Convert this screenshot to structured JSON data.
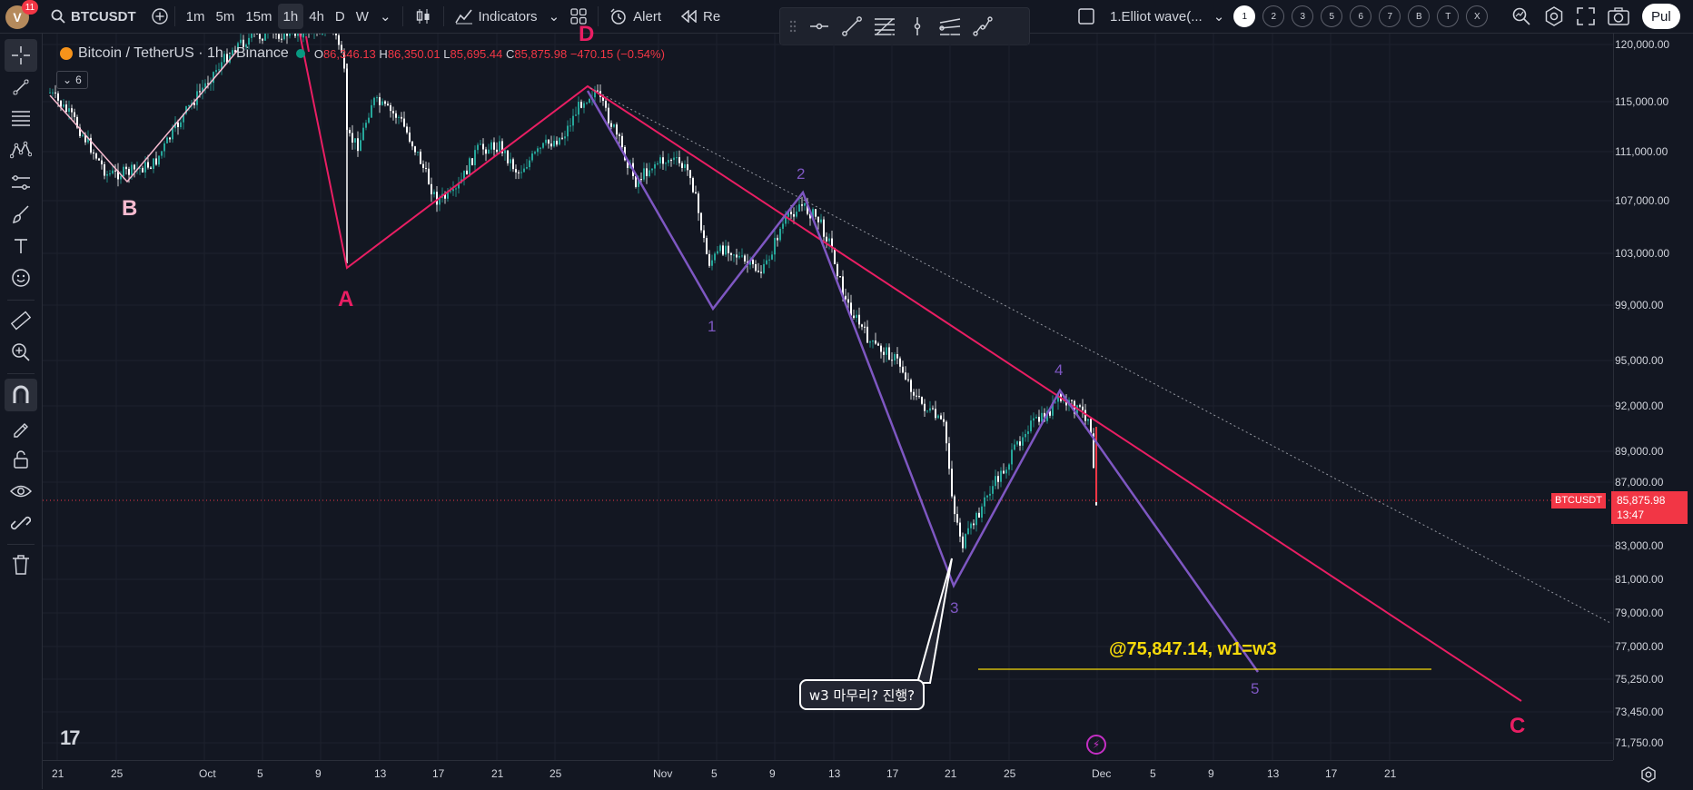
{
  "app": {
    "avatar_letter": "V",
    "notification_count": "11",
    "symbol": "BTCUSDT",
    "intervals": [
      "1m",
      "5m",
      "15m",
      "1h",
      "4h",
      "D",
      "W"
    ],
    "active_interval": "1h",
    "indicators_label": "Indicators",
    "alert_label": "Alert",
    "replay_label": "Re",
    "layout_name": "1.Elliot wave(...",
    "layout_tabs": [
      "1",
      "2",
      "3",
      "5",
      "6",
      "7",
      "B",
      "T",
      "X"
    ],
    "publish_label": "Pul"
  },
  "legend": {
    "title": "Bitcoin / TetherUS · 1h · Binance",
    "open_key": "O",
    "open": "86,346.13",
    "high_key": "H",
    "high": "86,350.01",
    "low_key": "L",
    "low": "85,695.44",
    "close_key": "C",
    "close": "85,875.98",
    "change": "−470.15 (−0.54%)",
    "indicator_count": "6"
  },
  "price_axis": [
    "120,000.00",
    "115,000.00",
    "111,000.00",
    "107,000.00",
    "103,000.00",
    "99,000.00",
    "95,000.00",
    "92,000.00",
    "89,000.00",
    "87,000.00",
    "83,000.00",
    "81,000.00",
    "79,000.00",
    "77,000.00",
    "75,250.00",
    "73,450.00",
    "71,750.00"
  ],
  "time_axis": [
    "21",
    "25",
    "Oct",
    "5",
    "9",
    "13",
    "17",
    "21",
    "25",
    "Nov",
    "5",
    "9",
    "13",
    "17",
    "21",
    "25",
    "Dec",
    "5",
    "9",
    "13",
    "17",
    "21"
  ],
  "current_price": {
    "symbol": "BTCUSDT",
    "price": "85,875.98",
    "countdown": "13:47"
  },
  "wave_labels": {
    "B": "B",
    "A": "A",
    "D": "D",
    "C": "C",
    "w1": "1",
    "w2": "2",
    "w3": "3",
    "w4": "4",
    "w5": "5"
  },
  "annotations": {
    "callout": "w3 마무리? 진행?",
    "target": "@75,847.14, w1=w3"
  },
  "colors": {
    "background": "#131722",
    "pink_wave": "#e91e63",
    "purple_wave": "#7e57c2",
    "label_pink": "#f8bbd0",
    "target_yellow": "#f5d90a",
    "down": "#f23645",
    "up": "#26a69a"
  }
}
